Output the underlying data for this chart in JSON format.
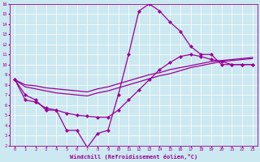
{
  "xlabel": "Windchill (Refroidissement éolien,°C)",
  "bg_color": "#cce8f0",
  "line_color": "#990099",
  "xlim": [
    -0.5,
    23.5
  ],
  "ylim": [
    2,
    16
  ],
  "xticks": [
    0,
    1,
    2,
    3,
    4,
    5,
    6,
    7,
    8,
    9,
    10,
    11,
    12,
    13,
    14,
    15,
    16,
    17,
    18,
    19,
    20,
    21,
    22,
    23
  ],
  "yticks": [
    2,
    3,
    4,
    5,
    6,
    7,
    8,
    9,
    10,
    11,
    12,
    13,
    14,
    15,
    16
  ],
  "curve1_x": [
    0,
    1,
    2,
    3,
    4,
    5,
    6,
    7,
    8,
    9,
    10,
    11,
    12,
    13,
    14,
    15,
    16,
    17,
    18,
    19,
    20,
    21,
    22,
    23
  ],
  "curve1_y": [
    8.5,
    7.0,
    6.5,
    5.5,
    5.5,
    3.5,
    3.5,
    1.8,
    3.2,
    3.5,
    7.0,
    11.0,
    15.3,
    16.0,
    15.3,
    14.2,
    13.3,
    11.8,
    11.0,
    11.0,
    10.0,
    10.0,
    10.0,
    10.0
  ],
  "curve1_has_markers": true,
  "curve2_x": [
    0,
    1,
    2,
    3,
    4,
    5,
    6,
    7,
    8,
    9,
    10,
    11,
    12,
    13,
    14,
    15,
    16,
    17,
    18,
    19,
    20,
    21,
    22,
    23
  ],
  "curve2_y": [
    8.5,
    6.5,
    6.3,
    5.7,
    5.5,
    5.2,
    5.0,
    4.9,
    4.8,
    4.8,
    5.5,
    6.5,
    7.5,
    8.5,
    9.5,
    10.2,
    10.8,
    11.0,
    10.8,
    10.5,
    10.3,
    10.0,
    10.0,
    10.0
  ],
  "curve2_has_markers": true,
  "curve3_x": [
    0,
    1,
    2,
    3,
    4,
    5,
    6,
    7,
    8,
    9,
    10,
    11,
    12,
    13,
    14,
    15,
    16,
    17,
    18,
    19,
    20,
    21,
    22,
    23
  ],
  "curve3_y": [
    8.5,
    7.8,
    7.6,
    7.4,
    7.2,
    7.1,
    7.0,
    6.9,
    7.2,
    7.4,
    7.7,
    8.0,
    8.3,
    8.6,
    8.9,
    9.1,
    9.4,
    9.7,
    9.9,
    10.1,
    10.3,
    10.4,
    10.5,
    10.6
  ],
  "curve3_has_markers": false,
  "curve4_x": [
    0,
    1,
    2,
    3,
    4,
    5,
    6,
    7,
    8,
    9,
    10,
    11,
    12,
    13,
    14,
    15,
    16,
    17,
    18,
    19,
    20,
    21,
    22,
    23
  ],
  "curve4_y": [
    8.5,
    8.0,
    7.9,
    7.7,
    7.6,
    7.5,
    7.4,
    7.3,
    7.6,
    7.8,
    8.1,
    8.4,
    8.7,
    9.0,
    9.2,
    9.5,
    9.7,
    9.9,
    10.1,
    10.3,
    10.4,
    10.5,
    10.6,
    10.7
  ],
  "curve4_has_markers": false
}
